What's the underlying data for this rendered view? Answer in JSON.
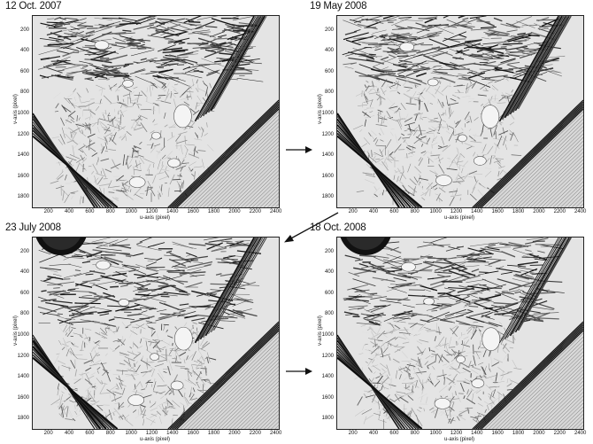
{
  "panels": [
    {
      "title": "12 Oct. 2007",
      "x_label": "u-axis (pixel)",
      "y_label": "v-axis (pixel)",
      "x_ticks": [
        "200",
        "400",
        "600",
        "800",
        "1000",
        "1200",
        "1400",
        "1600",
        "1800",
        "2000",
        "2200",
        "2400"
      ],
      "y_ticks": [
        "200",
        "400",
        "600",
        "800",
        "1000",
        "1200",
        "1400",
        "1600",
        "1800"
      ]
    },
    {
      "title": "19 May 2008",
      "x_label": "u-axis (pixel)",
      "y_label": "v-axis (pixel)",
      "x_ticks": [
        "200",
        "400",
        "600",
        "800",
        "1000",
        "1200",
        "1400",
        "1600",
        "1800",
        "2000",
        "2200",
        "2400"
      ],
      "y_ticks": [
        "200",
        "400",
        "600",
        "800",
        "1000",
        "1200",
        "1400",
        "1600",
        "1800"
      ]
    },
    {
      "title": "23 July 2008",
      "x_label": "u-axis (pixel)",
      "y_label": "v-axis (pixel)",
      "x_ticks": [
        "200",
        "400",
        "600",
        "800",
        "1000",
        "1200",
        "1400",
        "1600",
        "1800",
        "2000",
        "2200",
        "2400"
      ],
      "y_ticks": [
        "200",
        "400",
        "600",
        "800",
        "1000",
        "1200",
        "1400",
        "1600",
        "1800"
      ]
    },
    {
      "title": "18 Oct. 2008",
      "x_label": "u-axis (pixel)",
      "y_label": "v-axis (pixel)",
      "x_ticks": [
        "200",
        "400",
        "600",
        "800",
        "1000",
        "1200",
        "1400",
        "1600",
        "1800",
        "2000",
        "2200",
        "2400"
      ],
      "y_ticks": [
        "200",
        "400",
        "600",
        "800",
        "1000",
        "1200",
        "1400",
        "1600",
        "1800"
      ]
    }
  ],
  "colors": {
    "ink": "#111111",
    "terrain_light": "#ededed",
    "terrain_dark": "#1a1a1a"
  },
  "arrows": [
    "arrow-right",
    "arrow-down-left",
    "arrow-right"
  ]
}
